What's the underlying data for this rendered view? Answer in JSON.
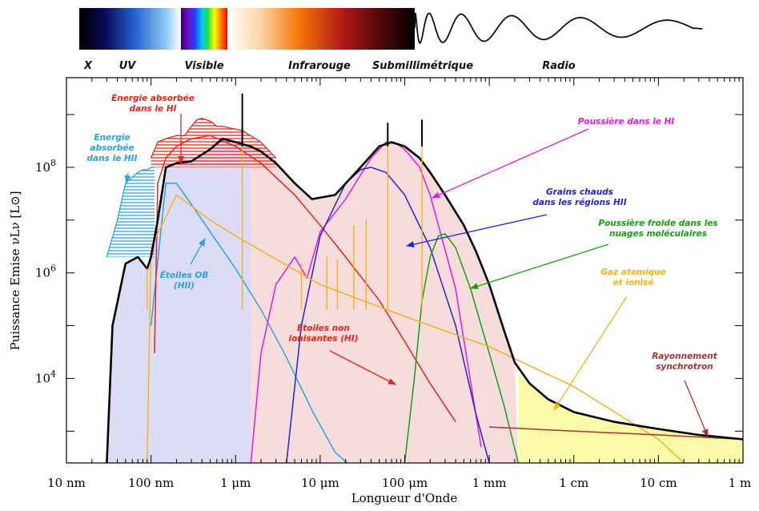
{
  "colors": {
    "total": "#000000",
    "hii_star": "#29a3e0",
    "absorbed_hi": "#e8241d",
    "dust_hi": "#e619e0",
    "hot_grains": "#2222dd",
    "cold_dust": "#12a012",
    "gas": "#f4b21c",
    "synchrotron": "#a83232",
    "fill_blue": "#dcdcf6",
    "fill_pink": "#f7dcdc",
    "fill_yellow": "#fbfaa8"
  },
  "spectrum_bar": {
    "labels": [
      "X",
      "UV",
      "Visible",
      "Infrarouge",
      "Submillimétrique",
      "Radio"
    ]
  },
  "chart_data": {
    "type": "line",
    "title": "",
    "xlabel": "Longueur d'Onde",
    "ylabel": "Puissance Emise νLν [L⊙]",
    "x_scale": "log",
    "y_scale": "log",
    "xlim": [
      "10 nm",
      "1 m"
    ],
    "ylim": [
      250.0,
      5000000000.0
    ],
    "x_ticks": [
      "10 nm",
      "100 nm",
      "1 μm",
      "10 μm",
      "100 μm",
      "1 mm",
      "1 cm",
      "10 cm",
      "1 m"
    ],
    "y_ticks": [
      "10^4",
      "10^6",
      "10^8"
    ],
    "x_units_note": "x values in metres",
    "series": [
      {
        "name": "Énergie absorbée dans le HII",
        "x": [
          3e-08,
          4e-08,
          5e-08,
          6e-08,
          7e-08,
          8e-08,
          9e-08,
          1e-07,
          1.1e-07
        ],
        "y": [
          2000000.0,
          10000000.0,
          50000000.0,
          65000000.0,
          80000000.0,
          90000000.0,
          90000000.0,
          100000000.0,
          100000000.0
        ]
      },
      {
        "name": "Énergie absorbée dans le HI",
        "x": [
          1e-07,
          1.2e-07,
          1.5e-07,
          2e-07,
          2.5e-07,
          3e-07,
          3.5e-07,
          4e-07,
          5e-07,
          6e-07,
          7e-07,
          9e-07,
          1.2e-06,
          1.5e-06,
          2e-06,
          3e-06
        ],
        "y": [
          150000000.0,
          300000000.0,
          350000000.0,
          400000000.0,
          400000000.0,
          600000000.0,
          800000000.0,
          850000000.0,
          750000000.0,
          600000000.0,
          600000000.0,
          550000000.0,
          500000000.0,
          400000000.0,
          300000000.0,
          150000000.0
        ]
      },
      {
        "name": "Étoiles OB (HII)",
        "x": [
          1e-07,
          1.5e-07,
          2e-07,
          3e-07,
          5e-07,
          1e-06,
          2e-06,
          4e-06,
          8e-06,
          1.5e-05,
          3e-05
        ],
        "y": [
          100000.0,
          50000000.0,
          50000000.0,
          20000000.0,
          6000000.0,
          1200000.0,
          200000.0,
          25000.0,
          2500.0,
          400.0,
          150.0
        ]
      },
      {
        "name": "Étoiles non ionisantes (HI)",
        "x": [
          1.1e-07,
          1.2e-07,
          1.5e-07,
          2e-07,
          3e-07,
          5e-07,
          1e-06,
          2e-06,
          5e-06,
          1e-05,
          2e-05,
          5e-05,
          0.0001,
          0.0002,
          0.0004
        ],
        "y": [
          30000.0,
          50000000.0,
          150000000.0,
          250000000.0,
          350000000.0,
          400000000.0,
          250000000.0,
          120000000.0,
          30000000.0,
          8000000.0,
          2000000.0,
          300000.0,
          50000.0,
          8000.0,
          1500.0
        ]
      },
      {
        "name": "Poussière dans le HI",
        "x": [
          1.5e-06,
          2e-06,
          3e-06,
          5e-06,
          7e-06,
          1e-05,
          2e-05,
          4e-05,
          6e-05,
          8e-05,
          0.0001,
          0.00015,
          0.0002,
          0.0004,
          0.0008
        ],
        "y": [
          200.0,
          30000.0,
          600000.0,
          2000000.0,
          800000.0,
          6000000.0,
          25000000.0,
          150000000.0,
          300000000.0,
          280000000.0,
          220000000.0,
          100000000.0,
          30000000.0,
          500000.0,
          500.0
        ]
      },
      {
        "name": "Grains chauds dans les régions HII",
        "x": [
          4e-06,
          6e-06,
          1e-05,
          2e-05,
          3e-05,
          4e-05,
          6e-05,
          0.0001,
          0.0002,
          0.0004,
          0.0007,
          0.001
        ],
        "y": [
          250.0,
          100000.0,
          5000000.0,
          50000000.0,
          90000000.0,
          100000000.0,
          80000000.0,
          30000000.0,
          3000000.0,
          100000.0,
          2000.0,
          250.0
        ]
      },
      {
        "name": "Poussière froide dans les nuages moléculaires",
        "x": [
          0.0001,
          0.00013,
          0.00016,
          0.0002,
          0.00025,
          0.0003,
          0.0004,
          0.0006,
          0.001,
          0.0015,
          0.0022
        ],
        "y": [
          250.0,
          10000.0,
          300000.0,
          2000000.0,
          5000000.0,
          5500000.0,
          3000000.0,
          500000.0,
          30000.0,
          3000.0,
          250.0
        ]
      },
      {
        "name": "Gaz atomique et ionisé",
        "x": [
          9e-08,
          1e-07,
          2e-07,
          5e-07,
          1e-06,
          1e-05,
          0.0001,
          0.001,
          0.01,
          0.1,
          0.2
        ],
        "y": [
          250.0,
          3000000.0,
          30000000.0,
          10000000.0,
          5000000.0,
          600000.0,
          150000.0,
          40000.0,
          7000.0,
          700.0,
          250.0
        ]
      },
      {
        "name": "Rayonnement synchrotron",
        "x": [
          0.001,
          0.01,
          0.1,
          1.0
        ],
        "y": [
          1200.0,
          1000.0,
          850.0,
          700.0
        ]
      },
      {
        "name": "Total",
        "x": [
          3e-08,
          3.5e-08,
          5e-08,
          7e-08,
          9e-08,
          1e-07,
          1.2e-07,
          1.5e-07,
          2e-07,
          3e-07,
          5e-07,
          7e-07,
          1e-06,
          1.5e-06,
          2e-06,
          3e-06,
          5e-06,
          8e-06,
          1.5e-05,
          3e-05,
          5e-05,
          7e-05,
          0.0001,
          0.00015,
          0.0002,
          0.0003,
          0.0005,
          0.0007,
          0.001,
          0.0015,
          0.002,
          0.003,
          0.005,
          0.01,
          0.03,
          0.1,
          0.3,
          1.0
        ],
        "y": [
          250.0,
          100000.0,
          1500000.0,
          2000000.0,
          1200000.0,
          2000000.0,
          10000000.0,
          100000000.0,
          120000000.0,
          130000000.0,
          220000000.0,
          350000000.0,
          300000000.0,
          250000000.0,
          200000000.0,
          120000000.0,
          50000000.0,
          25000000.0,
          30000000.0,
          100000000.0,
          250000000.0,
          300000000.0,
          250000000.0,
          150000000.0,
          80000000.0,
          30000000.0,
          8000000.0,
          2500000.0,
          600000.0,
          80000.0,
          20000.0,
          8000.0,
          4000.0,
          2300.0,
          1500.0,
          1100.0,
          850.0,
          700.0
        ]
      }
    ],
    "annotations": [
      {
        "text": [
          "Energie absorbée",
          "dans le HI"
        ],
        "color": "#e8241d"
      },
      {
        "text": [
          "Energie",
          "absorbée",
          "dans le HII"
        ],
        "color": "#29a3e0"
      },
      {
        "text": [
          "Étoiles OB",
          "(HII)"
        ],
        "color": "#29a3e0"
      },
      {
        "text": [
          "Poussière dans le HI"
        ],
        "color": "#e619e0"
      },
      {
        "text": [
          "Grains chauds",
          "dans les régions HII"
        ],
        "color": "#2222dd"
      },
      {
        "text": [
          "Poussière froide dans les",
          "nuages moléculaires"
        ],
        "color": "#12a012"
      },
      {
        "text": [
          "Gaz atomique",
          "et ionisé"
        ],
        "color": "#f4b21c"
      },
      {
        "text": [
          "Étoiles non",
          "ionisantes (HI)"
        ],
        "color": "#e8241d"
      },
      {
        "text": [
          "Rayonnement",
          "synchrotron"
        ],
        "color": "#a83232"
      }
    ],
    "grid": false,
    "legend": "none"
  }
}
